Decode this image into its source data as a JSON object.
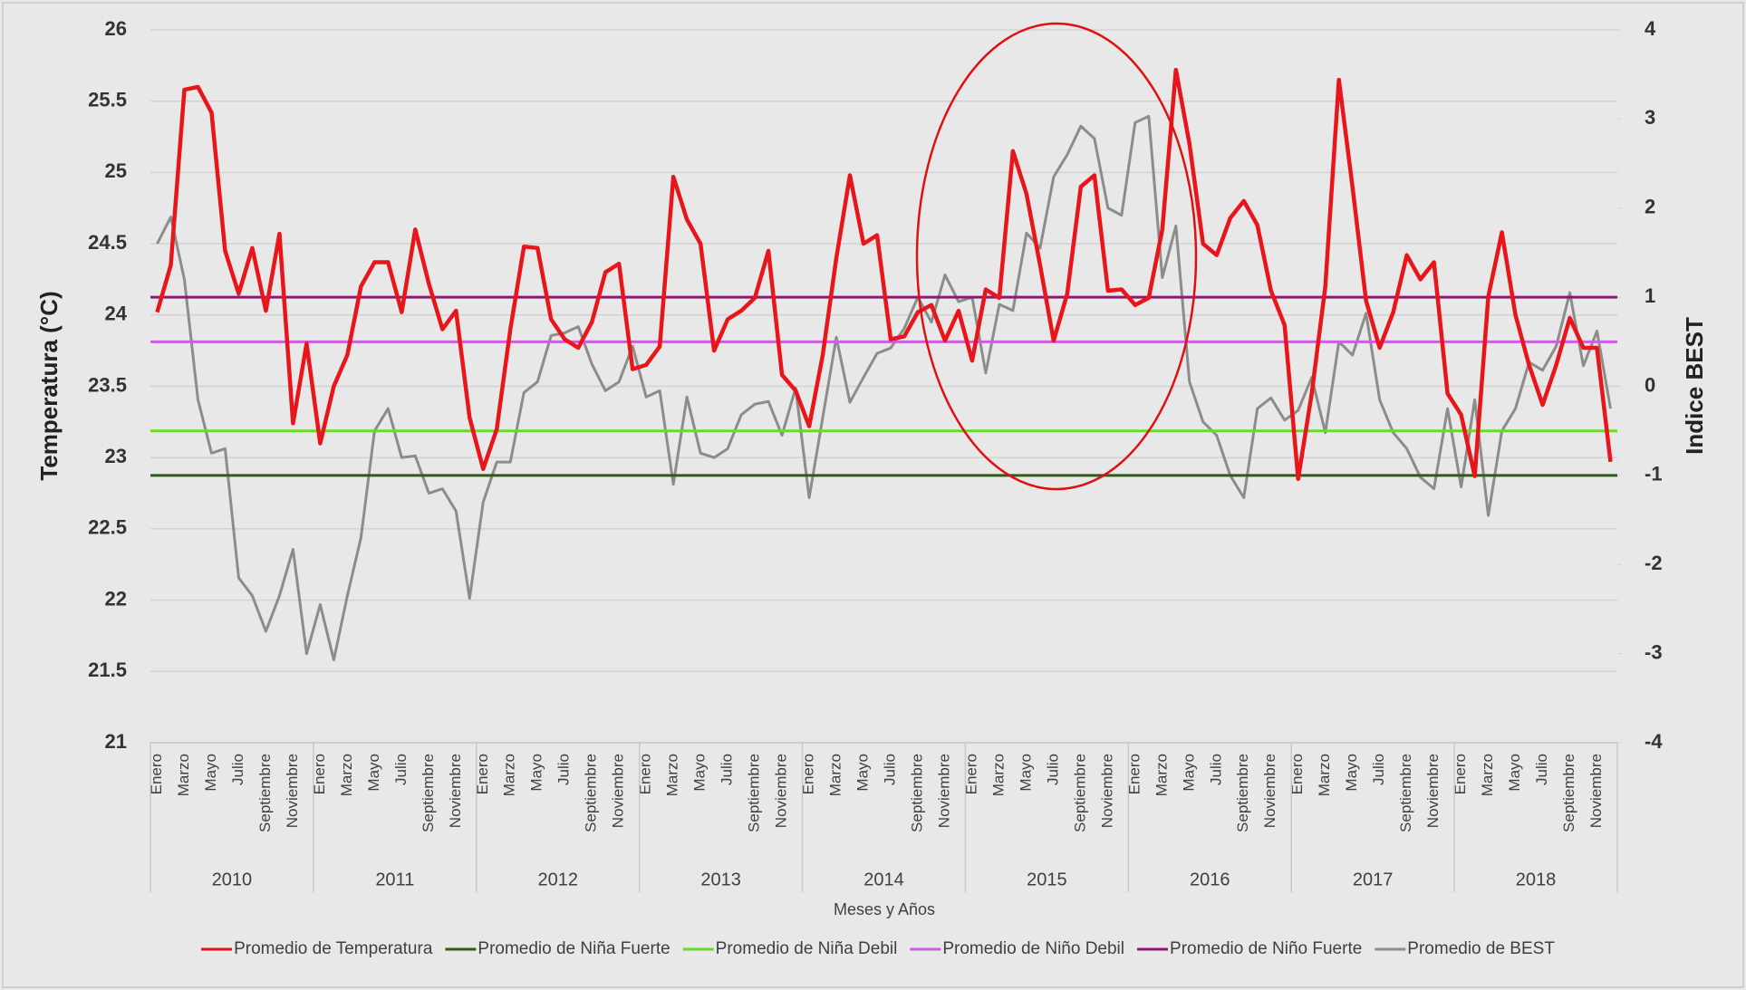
{
  "chart_data": {
    "type": "line",
    "y_title": "Temperatura (°C)",
    "y2_title": "Indice BEST",
    "x_title": "Meses y Años",
    "ylim": [
      21,
      26
    ],
    "yticks": [
      21,
      21.5,
      22,
      22.5,
      23,
      23.5,
      24,
      24.5,
      25,
      25.5,
      26
    ],
    "y2lim": [
      -4,
      4
    ],
    "y2ticks": [
      -4,
      -3,
      -2,
      -1,
      0,
      1,
      2,
      3,
      4
    ],
    "grid": true,
    "legend": "bottom",
    "category_groups": [
      "2010",
      "2011",
      "2012",
      "2013",
      "2014",
      "2015",
      "2016",
      "2017",
      "2018"
    ],
    "categories": [
      "Enero",
      null,
      "Marzo",
      null,
      "Mayo",
      null,
      "Julio",
      null,
      "Septiembre",
      null,
      "Noviembre",
      null,
      "Enero",
      null,
      "Marzo",
      null,
      "Mayo",
      null,
      "Julio",
      null,
      "Septiembre",
      null,
      "Noviembre",
      null,
      "Enero",
      null,
      "Marzo",
      null,
      "Mayo",
      null,
      "Julio",
      null,
      "Septiembre",
      null,
      "Noviembre",
      null,
      "Enero",
      null,
      "Marzo",
      null,
      "Mayo",
      null,
      "Julio",
      null,
      "Septiembre",
      null,
      "Noviembre",
      null,
      "Enero",
      null,
      "Marzo",
      null,
      "Mayo",
      null,
      "Julio",
      null,
      "Septiembre",
      null,
      "Noviembre",
      null,
      "Enero",
      null,
      "Marzo",
      null,
      "Mayo",
      null,
      "Julio",
      null,
      "Septiembre",
      null,
      "Noviembre",
      null,
      "Enero",
      null,
      "Marzo",
      null,
      "Mayo",
      null,
      "Julio",
      null,
      "Septiembre",
      null,
      "Noviembre",
      null,
      "Enero",
      null,
      "Marzo",
      null,
      "Mayo",
      null,
      "Julio",
      null,
      "Septiembre",
      null,
      "Noviembre",
      null,
      "Enero",
      null,
      "Marzo",
      null,
      "Mayo",
      null,
      "Julio",
      null,
      "Septiembre",
      null,
      "Noviembre",
      null
    ],
    "series": [
      {
        "name": "Promedio de Temperatura",
        "color": "#e8151b",
        "values": [
          24.02,
          24.35,
          25.58,
          25.6,
          25.42,
          24.45,
          24.15,
          24.47,
          24.03,
          24.57,
          23.24,
          23.8,
          23.1,
          23.5,
          23.72,
          24.2,
          24.37,
          24.37,
          24.02,
          24.6,
          24.22,
          23.9,
          24.03,
          23.28,
          22.92,
          23.2,
          23.9,
          24.48,
          24.47,
          23.97,
          23.83,
          23.77,
          23.95,
          24.3,
          24.36,
          23.62,
          23.65,
          23.78,
          24.97,
          24.67,
          24.5,
          23.75,
          23.97,
          24.03,
          24.12,
          24.45,
          23.58,
          23.47,
          23.22,
          23.72,
          24.4,
          24.98,
          24.5,
          24.56,
          23.83,
          23.85,
          24.02,
          24.07,
          23.82,
          24.03,
          23.68,
          24.18,
          24.12,
          25.15,
          24.85,
          24.35,
          23.82,
          24.15,
          24.9,
          24.98,
          24.17,
          24.18,
          24.07,
          24.12,
          24.6,
          25.72,
          25.2,
          24.5,
          24.42,
          24.68,
          24.8,
          24.63,
          24.17,
          23.93,
          22.85,
          23.45,
          24.2,
          25.65,
          24.9,
          24.1,
          23.77,
          24.02,
          24.42,
          24.25,
          24.37,
          23.45,
          23.3,
          22.87,
          24.13,
          24.58,
          24.0,
          23.65,
          23.37,
          23.65,
          23.98,
          23.77,
          23.77,
          22.97
        ]
      },
      {
        "name": "Promedio de Niña Fuerte",
        "color": "#2d5e12",
        "axis": "y2",
        "value": -1
      },
      {
        "name": "Promedio de Niña Debil",
        "color": "#6ad92a",
        "axis": "y2",
        "value": -0.5
      },
      {
        "name": "Promedio de Niño Debil",
        "color": "#cc5ee0",
        "axis": "y2",
        "value": 0.5
      },
      {
        "name": "Promedio de Niño Fuerte",
        "color": "#951479",
        "axis": "y2",
        "value": 1
      },
      {
        "name": "Promedio de BEST",
        "color": "#8c8c8c",
        "axis": "y2",
        "values": [
          1.6,
          1.9,
          1.2,
          -0.15,
          -0.75,
          -0.7,
          -2.15,
          -2.35,
          -2.75,
          -2.35,
          -1.83,
          -3.0,
          -2.45,
          -3.07,
          -2.35,
          -1.7,
          -0.5,
          -0.25,
          -0.8,
          -0.78,
          -1.2,
          -1.15,
          -1.4,
          -2.38,
          -1.3,
          -0.85,
          -0.85,
          -0.07,
          0.05,
          0.57,
          0.6,
          0.67,
          0.25,
          -0.05,
          0.05,
          0.45,
          -0.12,
          -0.05,
          -1.1,
          -0.12,
          -0.75,
          -0.8,
          -0.7,
          -0.32,
          -0.2,
          -0.17,
          -0.55,
          -0.02,
          -1.25,
          -0.35,
          0.55,
          -0.18,
          0.1,
          0.37,
          0.43,
          0.65,
          1.0,
          0.72,
          1.25,
          0.95,
          1.0,
          0.15,
          0.92,
          0.85,
          1.72,
          1.55,
          2.35,
          2.6,
          2.92,
          2.78,
          2.0,
          1.92,
          2.96,
          3.03,
          1.22,
          1.8,
          0.05,
          -0.4,
          -0.55,
          -1.0,
          -1.25,
          -0.25,
          -0.13,
          -0.38,
          -0.27,
          0.1,
          -0.52,
          0.5,
          0.35,
          0.82,
          -0.15,
          -0.52,
          -0.7,
          -1.02,
          -1.15,
          -0.25,
          -1.13,
          -0.15,
          -1.45,
          -0.5,
          -0.25,
          0.27,
          0.18,
          0.45,
          1.05,
          0.23,
          0.62,
          -0.25
        ]
      }
    ]
  }
}
